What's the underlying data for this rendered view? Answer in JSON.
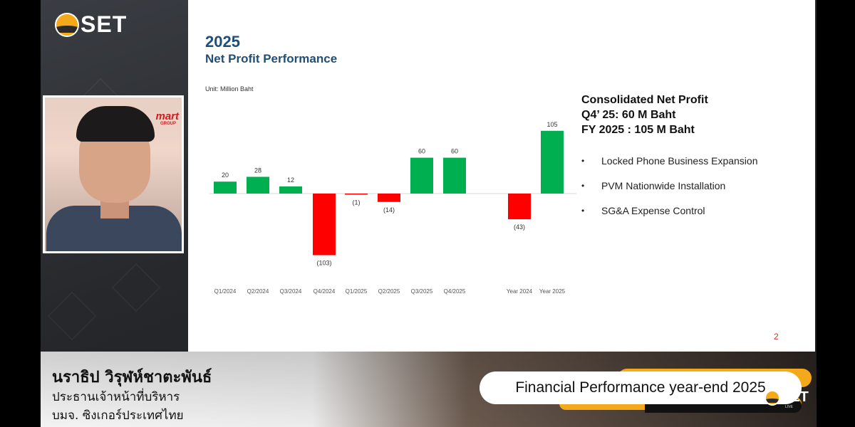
{
  "broadcast": {
    "logo_text": "SET",
    "mini_logo_text": "SET",
    "mini_logo_sub": "LIVE"
  },
  "camera": {
    "brand": "mart",
    "brand_sub": "GROUP"
  },
  "slide": {
    "year": "2025",
    "title": "Net Profit Performance",
    "unit": "Unit: Million Baht",
    "summary": [
      "Consolidated Net Profit",
      "Q4’ 25: 60 M Baht",
      "FY 2025 : 105 M Baht"
    ],
    "bullets": [
      "Locked Phone Business Expansion",
      "PVM Nationwide Installation",
      "SG&A Expense Control"
    ],
    "page_number": "2"
  },
  "chart_data": {
    "type": "bar",
    "categories": [
      "Q1/2024",
      "Q2/2024",
      "Q3/2024",
      "Q4/2024",
      "Q1/2025",
      "Q2/2025",
      "Q3/2025",
      "Q4/2025",
      "Year 2024",
      "Year 2025"
    ],
    "values": [
      20,
      28,
      12,
      -103,
      -1,
      -14,
      60,
      60,
      -43,
      105
    ],
    "data_labels": [
      "20",
      "28",
      "12",
      "(103)",
      "(1)",
      "(14)",
      "60",
      "60",
      "(43)",
      "105"
    ],
    "positive_color": "#00b050",
    "negative_color": "#ff0000",
    "ylabel": "",
    "xlabel": "",
    "ylim": [
      -110,
      110
    ],
    "grid": false
  },
  "lower_third": {
    "name": "นราธิป วิรุฬห์ชาตะพันธ์",
    "position": "ประธานเจ้าหน้าที่บริหาร",
    "company": "บมจ. ซิงเกอร์ประเทศไทย",
    "event_title": "Financial Performance year-end 2025"
  },
  "colors": {
    "accent": "#f4a91b",
    "title_blue": "#1f4e79",
    "page_number_red": "#c0392b"
  }
}
